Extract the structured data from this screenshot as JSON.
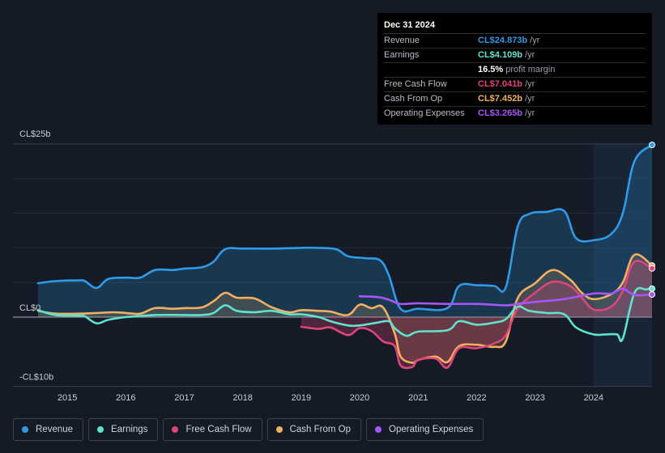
{
  "tooltip": {
    "date": "Dec 31 2024",
    "rows": [
      {
        "label": "Revenue",
        "value": "CL$24.873b",
        "unit": "/yr",
        "color": "#2f9be8"
      },
      {
        "label": "Earnings",
        "value": "CL$4.109b",
        "unit": "/yr",
        "color": "#5fe3cf"
      },
      {
        "label": "",
        "value": "16.5%",
        "unit": "profit margin",
        "color": "#ffffff"
      },
      {
        "label": "Free Cash Flow",
        "value": "CL$7.041b",
        "unit": "/yr",
        "color": "#e0447c"
      },
      {
        "label": "Cash From Op",
        "value": "CL$7.452b",
        "unit": "/yr",
        "color": "#f0b060"
      },
      {
        "label": "Operating Expenses",
        "value": "CL$3.265b",
        "unit": "/yr",
        "color": "#a855f7"
      }
    ]
  },
  "legend": [
    {
      "label": "Revenue",
      "color": "#2f9be8"
    },
    {
      "label": "Earnings",
      "color": "#5fe3cf"
    },
    {
      "label": "Free Cash Flow",
      "color": "#e0447c"
    },
    {
      "label": "Cash From Op",
      "color": "#f0b060"
    },
    {
      "label": "Operating Expenses",
      "color": "#a855f7"
    }
  ],
  "chart_data": {
    "type": "line",
    "y_unit": "CL$ billions",
    "ylim": [
      -10,
      25
    ],
    "y_tick_labels": [
      {
        "value": 25,
        "label": "CL$25b"
      },
      {
        "value": 0,
        "label": "CL$0"
      },
      {
        "value": -10,
        "label": "-CL$10b"
      }
    ],
    "x_tick_labels": [
      "2015",
      "2016",
      "2017",
      "2018",
      "2019",
      "2020",
      "2021",
      "2022",
      "2023",
      "2024"
    ],
    "xlim": [
      2014.5,
      2025.0
    ],
    "highlight_start": 2024.0,
    "series": [
      {
        "name": "Revenue",
        "color": "#2f9be8",
        "filled": true,
        "points": [
          [
            2014.5,
            4.9
          ],
          [
            2014.8,
            5.2
          ],
          [
            2015.2,
            5.3
          ],
          [
            2015.3,
            5.2
          ],
          [
            2015.5,
            4.2
          ],
          [
            2015.7,
            5.5
          ],
          [
            2016.0,
            5.7
          ],
          [
            2016.25,
            5.7
          ],
          [
            2016.5,
            6.8
          ],
          [
            2016.8,
            6.8
          ],
          [
            2017.0,
            7.0
          ],
          [
            2017.3,
            7.2
          ],
          [
            2017.5,
            8.0
          ],
          [
            2017.7,
            9.8
          ],
          [
            2018.0,
            9.9
          ],
          [
            2018.5,
            9.9
          ],
          [
            2019.0,
            10.0
          ],
          [
            2019.3,
            10.0
          ],
          [
            2019.6,
            9.8
          ],
          [
            2019.8,
            8.8
          ],
          [
            2020.1,
            8.5
          ],
          [
            2020.35,
            8.2
          ],
          [
            2020.5,
            6.0
          ],
          [
            2020.7,
            1.2
          ],
          [
            2021.0,
            1.2
          ],
          [
            2021.5,
            1.3
          ],
          [
            2021.7,
            4.5
          ],
          [
            2022.0,
            4.6
          ],
          [
            2022.3,
            4.5
          ],
          [
            2022.5,
            4.3
          ],
          [
            2022.7,
            13.0
          ],
          [
            2022.9,
            14.9
          ],
          [
            2023.2,
            15.2
          ],
          [
            2023.5,
            15.3
          ],
          [
            2023.7,
            11.4
          ],
          [
            2024.0,
            11.1
          ],
          [
            2024.3,
            12.0
          ],
          [
            2024.5,
            15.0
          ],
          [
            2024.7,
            22.5
          ],
          [
            2025.0,
            24.87
          ]
        ]
      },
      {
        "name": "Earnings",
        "color": "#5fe3cf",
        "filled": false,
        "points": [
          [
            2014.5,
            1.0
          ],
          [
            2014.8,
            0.3
          ],
          [
            2015.2,
            0.2
          ],
          [
            2015.3,
            0.1
          ],
          [
            2015.5,
            -0.9
          ],
          [
            2015.7,
            -0.4
          ],
          [
            2016.0,
            0.0
          ],
          [
            2016.5,
            0.3
          ],
          [
            2017.0,
            0.3
          ],
          [
            2017.3,
            0.3
          ],
          [
            2017.5,
            0.6
          ],
          [
            2017.7,
            1.7
          ],
          [
            2017.9,
            0.9
          ],
          [
            2018.2,
            0.7
          ],
          [
            2018.5,
            0.9
          ],
          [
            2018.8,
            0.4
          ],
          [
            2019.0,
            0.4
          ],
          [
            2019.3,
            0.0
          ],
          [
            2019.5,
            -0.6
          ],
          [
            2019.8,
            -1.2
          ],
          [
            2020.0,
            -1.2
          ],
          [
            2020.3,
            -0.8
          ],
          [
            2020.5,
            -0.6
          ],
          [
            2020.6,
            -1.6
          ],
          [
            2020.8,
            -2.7
          ],
          [
            2021.0,
            -2.1
          ],
          [
            2021.5,
            -1.9
          ],
          [
            2021.7,
            -0.6
          ],
          [
            2022.0,
            -1.1
          ],
          [
            2022.3,
            -0.8
          ],
          [
            2022.5,
            -0.3
          ],
          [
            2022.7,
            1.5
          ],
          [
            2022.9,
            0.9
          ],
          [
            2023.2,
            0.6
          ],
          [
            2023.5,
            0.4
          ],
          [
            2023.7,
            -1.5
          ],
          [
            2024.0,
            -2.5
          ],
          [
            2024.2,
            -2.5
          ],
          [
            2024.4,
            -2.5
          ],
          [
            2024.5,
            -3.1
          ],
          [
            2024.7,
            3.5
          ],
          [
            2024.9,
            4.0
          ],
          [
            2025.0,
            4.11
          ]
        ]
      },
      {
        "name": "Free Cash Flow",
        "color": "#e0447c",
        "filled": true,
        "points": [
          [
            2019.0,
            -1.4
          ],
          [
            2019.3,
            -1.7
          ],
          [
            2019.5,
            -1.5
          ],
          [
            2019.8,
            -2.6
          ],
          [
            2020.0,
            -1.6
          ],
          [
            2020.2,
            -2.0
          ],
          [
            2020.4,
            -3.5
          ],
          [
            2020.6,
            -4.2
          ],
          [
            2020.7,
            -7.0
          ],
          [
            2020.9,
            -7.2
          ],
          [
            2021.0,
            -6.2
          ],
          [
            2021.3,
            -6.0
          ],
          [
            2021.5,
            -7.3
          ],
          [
            2021.7,
            -4.5
          ],
          [
            2022.0,
            -4.5
          ],
          [
            2022.3,
            -3.8
          ],
          [
            2022.5,
            -2.6
          ],
          [
            2022.7,
            1.2
          ],
          [
            2023.0,
            3.5
          ],
          [
            2023.3,
            5.1
          ],
          [
            2023.6,
            4.5
          ],
          [
            2023.8,
            2.8
          ],
          [
            2024.0,
            1.1
          ],
          [
            2024.3,
            1.5
          ],
          [
            2024.5,
            3.8
          ],
          [
            2024.7,
            8.0
          ],
          [
            2025.0,
            7.04
          ]
        ]
      },
      {
        "name": "Cash From Op",
        "color": "#f0b060",
        "filled": true,
        "points": [
          [
            2014.5,
            0.9
          ],
          [
            2014.8,
            0.5
          ],
          [
            2015.2,
            0.5
          ],
          [
            2015.5,
            0.6
          ],
          [
            2015.8,
            0.7
          ],
          [
            2016.0,
            0.6
          ],
          [
            2016.25,
            0.5
          ],
          [
            2016.5,
            1.3
          ],
          [
            2016.8,
            1.2
          ],
          [
            2017.0,
            1.3
          ],
          [
            2017.3,
            1.4
          ],
          [
            2017.5,
            2.3
          ],
          [
            2017.7,
            3.5
          ],
          [
            2017.9,
            2.8
          ],
          [
            2018.2,
            2.7
          ],
          [
            2018.5,
            1.4
          ],
          [
            2018.8,
            0.7
          ],
          [
            2019.0,
            1.0
          ],
          [
            2019.3,
            0.9
          ],
          [
            2019.5,
            0.8
          ],
          [
            2019.8,
            0.3
          ],
          [
            2020.0,
            1.8
          ],
          [
            2020.2,
            1.3
          ],
          [
            2020.4,
            1.4
          ],
          [
            2020.6,
            -2.4
          ],
          [
            2020.7,
            -5.7
          ],
          [
            2020.9,
            -6.6
          ],
          [
            2021.0,
            -6.2
          ],
          [
            2021.3,
            -5.7
          ],
          [
            2021.5,
            -6.5
          ],
          [
            2021.7,
            -4.2
          ],
          [
            2022.0,
            -4.0
          ],
          [
            2022.3,
            -4.3
          ],
          [
            2022.5,
            -3.5
          ],
          [
            2022.7,
            2.7
          ],
          [
            2023.0,
            4.9
          ],
          [
            2023.3,
            6.8
          ],
          [
            2023.6,
            5.4
          ],
          [
            2023.8,
            3.5
          ],
          [
            2024.0,
            2.6
          ],
          [
            2024.3,
            3.3
          ],
          [
            2024.5,
            5.0
          ],
          [
            2024.7,
            9.0
          ],
          [
            2025.0,
            7.45
          ]
        ]
      },
      {
        "name": "Operating Expenses",
        "color": "#a855f7",
        "filled": false,
        "points": [
          [
            2020.0,
            3.0
          ],
          [
            2020.3,
            2.9
          ],
          [
            2020.5,
            2.5
          ],
          [
            2020.7,
            1.9
          ],
          [
            2021.0,
            2.0
          ],
          [
            2021.5,
            1.9
          ],
          [
            2022.0,
            1.9
          ],
          [
            2022.5,
            1.7
          ],
          [
            2022.7,
            1.9
          ],
          [
            2023.0,
            2.2
          ],
          [
            2023.5,
            2.6
          ],
          [
            2024.0,
            3.4
          ],
          [
            2024.3,
            3.4
          ],
          [
            2024.5,
            4.1
          ],
          [
            2024.7,
            3.2
          ],
          [
            2025.0,
            3.27
          ]
        ]
      }
    ]
  }
}
